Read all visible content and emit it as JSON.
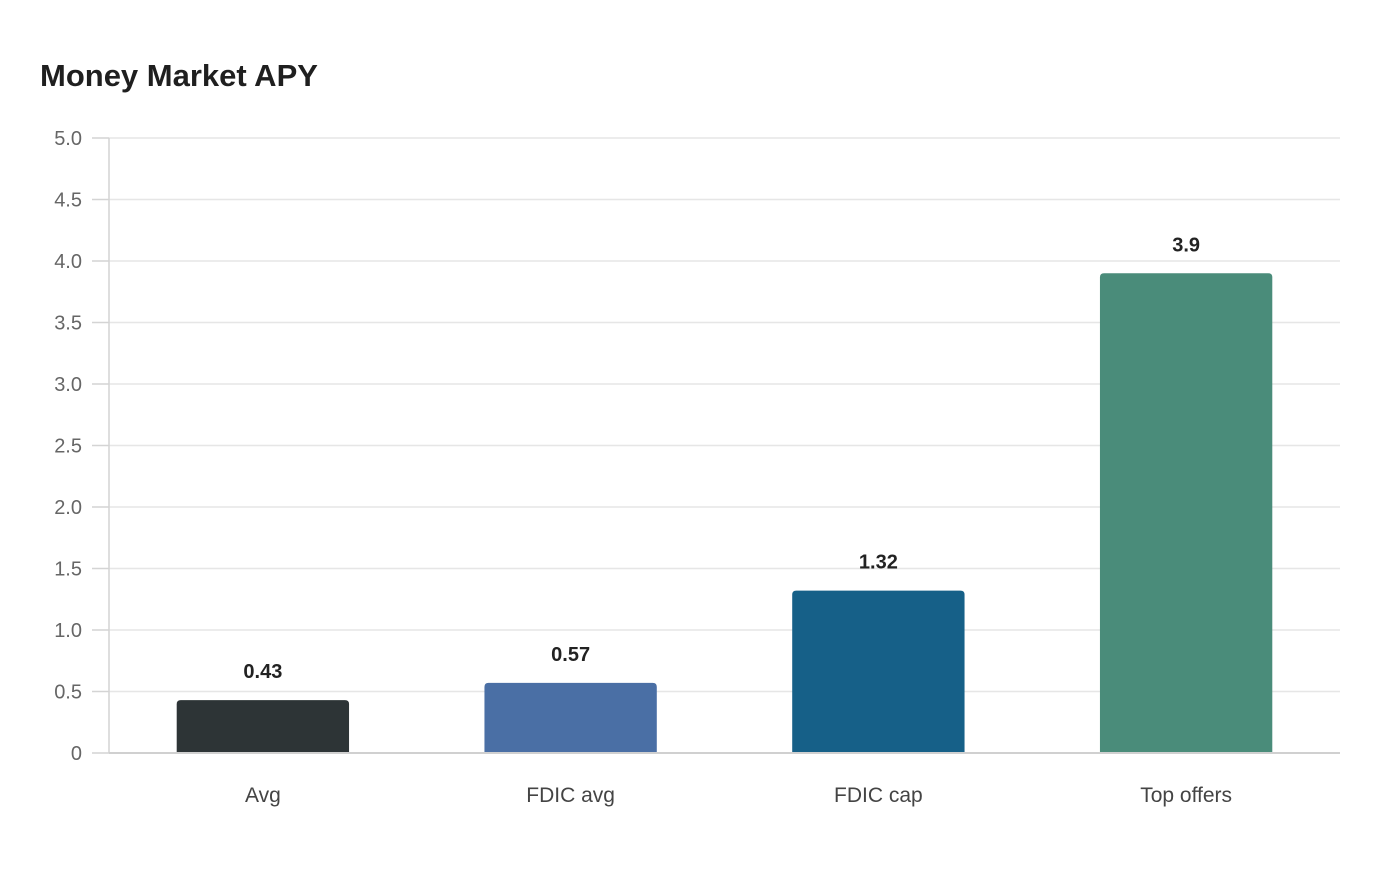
{
  "chart_data": {
    "type": "bar",
    "title": "Money Market APY",
    "xlabel": "",
    "ylabel": "",
    "categories": [
      "Avg",
      "FDIC avg",
      "FDIC cap",
      "Top offers"
    ],
    "values": [
      0.43,
      0.57,
      1.32,
      3.9
    ],
    "value_labels": [
      "0.43",
      "0.57",
      "1.32",
      "3.9"
    ],
    "colors": [
      "#2d3436",
      "#4a6fa5",
      "#166088",
      "#4a8c7a"
    ],
    "ylim": [
      0,
      5
    ],
    "yticks": [
      0,
      0.5,
      1,
      1.5,
      2,
      2.5,
      3,
      3.5,
      4,
      4.5,
      5
    ],
    "ytick_labels": [
      "0",
      "0.5",
      "1.0",
      "1.5",
      "2.0",
      "2.5",
      "3.0",
      "3.5",
      "4.0",
      "4.5",
      "5.0"
    ],
    "grid": true,
    "legend": "none"
  }
}
